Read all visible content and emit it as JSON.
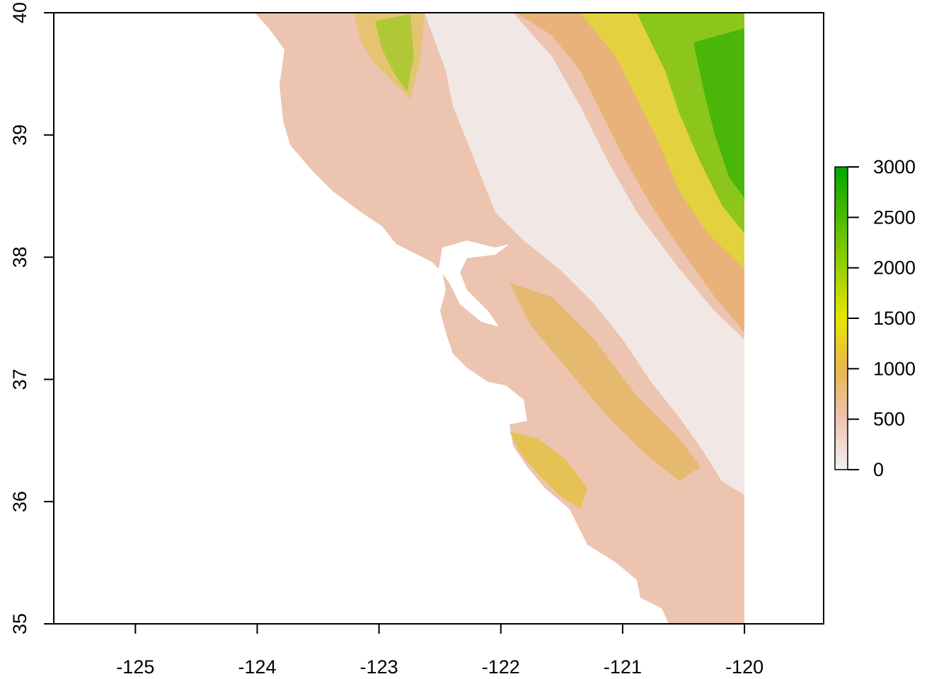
{
  "chart_data": {
    "type": "heatmap",
    "title": "",
    "xlabel": "",
    "ylabel": "",
    "xlim": [
      -125.67,
      -119.35
    ],
    "ylim": [
      35,
      40
    ],
    "raster_extent": {
      "xmin": -125.0,
      "xmax": -120.0,
      "ymin": 35.0,
      "ymax": 40.0
    },
    "x_ticks": [
      -125,
      -124,
      -123,
      -122,
      -121,
      -120
    ],
    "x_tick_labels": [
      "-125",
      "-124",
      "-123",
      "-122",
      "-121",
      "-120"
    ],
    "y_ticks": [
      35,
      36,
      37,
      38,
      39,
      40
    ],
    "y_tick_labels": [
      "35",
      "36",
      "37",
      "38",
      "39",
      "40"
    ],
    "legend": {
      "position": "right",
      "min": 0,
      "max": 3000,
      "ticks": [
        0,
        500,
        1000,
        1500,
        2000,
        2500,
        3000
      ],
      "tick_labels": [
        "0",
        "500",
        "1000",
        "1500",
        "2000",
        "2500",
        "3000"
      ],
      "colors": [
        "#F2F2F2",
        "#EFC2B3",
        "#ECB176",
        "#EAB64E",
        "#E6E600",
        "#63C600",
        "#00A600"
      ]
    },
    "grid": false
  }
}
